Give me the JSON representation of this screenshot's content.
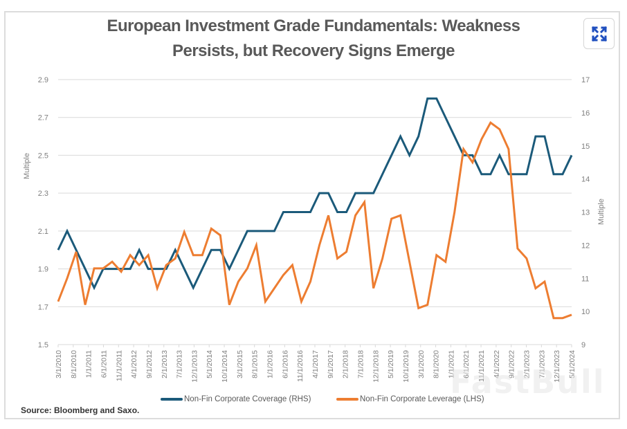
{
  "ui": {
    "expand_button": {
      "icon": "expand-arrows-icon",
      "color": "#1f4fbf"
    },
    "source": "Source: Bloomberg and Saxo.",
    "watermark": "FastBull"
  },
  "chart_data": {
    "type": "line",
    "title_lines": [
      "European Investment Grade Fundamentals: Weakness",
      "Persists, but Recovery Signs Emerge"
    ],
    "title": "European Investment Grade Fundamentals: Weakness Persists, but Recovery Signs Emerge",
    "xlabel": "",
    "ylabel_left": "Multiple",
    "ylabel_right": "Multiple",
    "ylim_left": [
      1.5,
      2.9
    ],
    "ylim_right": [
      9,
      17
    ],
    "yticks_left": [
      "2.9",
      "2.7",
      "2.5",
      "2.3",
      "2.1",
      "1.9",
      "1.7",
      "1.5"
    ],
    "yticks_right": [
      "17",
      "16",
      "15",
      "14",
      "13",
      "12",
      "11",
      "10",
      "9"
    ],
    "grid": true,
    "legend_position": "bottom",
    "x_tick_labels": [
      "3/1/2010",
      "8/1/2010",
      "1/1/2011",
      "6/1/2011",
      "11/1/2011",
      "4/1/2012",
      "9/1/2012",
      "2/1/2013",
      "7/1/2013",
      "12/1/2013",
      "5/1/2014",
      "10/1/2014",
      "3/1/2015",
      "8/1/2015",
      "1/1/2016",
      "6/1/2016",
      "11/1/2016",
      "4/1/2017",
      "9/1/2017",
      "2/1/2018",
      "7/1/2018",
      "12/1/2018",
      "5/1/2019",
      "10/1/2019",
      "3/1/2020",
      "8/1/2020",
      "1/1/2021",
      "6/1/2021",
      "11/1/2021",
      "4/1/2022",
      "9/1/2022",
      "2/1/2023",
      "7/1/2023",
      "12/1/2023",
      "5/1/2024"
    ],
    "colors": {
      "coverage": "#1b5a7a",
      "leverage": "#ed7d31",
      "grid": "#d9d9d9",
      "tick_text": "#7f7f7f"
    },
    "series": [
      {
        "name": "Non-Fin Corporate Coverage (RHS)",
        "axis": "left-scale",
        "color": "#1b5a7a",
        "values": [
          2.0,
          2.1,
          2.0,
          1.9,
          1.8,
          1.9,
          1.9,
          1.9,
          1.9,
          2.0,
          1.9,
          1.9,
          1.9,
          2.0,
          1.9,
          1.8,
          1.9,
          2.0,
          2.0,
          1.9,
          2.0,
          2.1,
          2.1,
          2.1,
          2.1,
          2.2,
          2.2,
          2.2,
          2.2,
          2.3,
          2.3,
          2.2,
          2.2,
          2.3,
          2.3,
          2.3,
          2.4,
          2.5,
          2.6,
          2.5,
          2.6,
          2.8,
          2.8,
          2.7,
          2.6,
          2.5,
          2.5,
          2.4,
          2.4,
          2.5,
          2.4,
          2.4,
          2.4,
          2.6,
          2.6,
          2.4,
          2.4,
          2.5
        ]
      },
      {
        "name": "Non-Fin Corporate Leverage (LHS)",
        "axis": "right-scale",
        "color": "#ed7d31",
        "values": [
          10.3,
          11.0,
          11.8,
          10.2,
          11.3,
          11.3,
          11.5,
          11.2,
          11.7,
          11.4,
          11.7,
          10.7,
          11.4,
          11.6,
          12.4,
          11.7,
          11.7,
          12.5,
          12.3,
          10.2,
          10.9,
          11.3,
          12.0,
          10.3,
          10.7,
          11.1,
          11.4,
          10.3,
          10.9,
          12.0,
          12.9,
          11.6,
          11.8,
          12.9,
          13.3,
          10.7,
          11.6,
          12.8,
          12.9,
          11.5,
          10.1,
          10.2,
          11.7,
          11.5,
          13.0,
          14.9,
          14.5,
          15.2,
          15.7,
          15.5,
          14.9,
          11.9,
          11.6,
          10.7,
          10.9,
          9.8,
          9.8,
          9.9
        ]
      }
    ]
  }
}
